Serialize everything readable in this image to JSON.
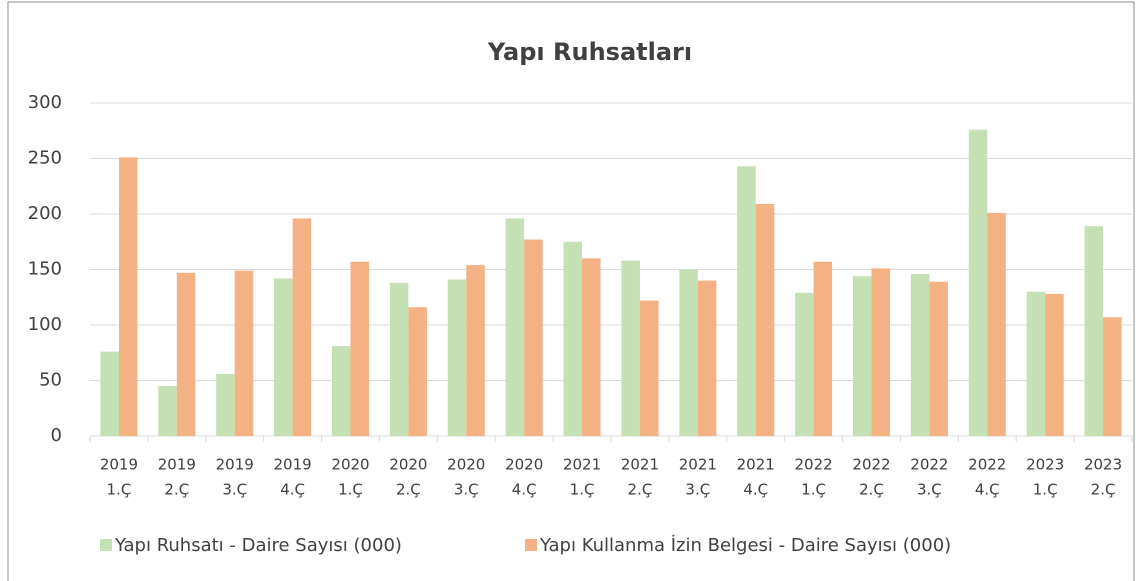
{
  "chart_data": {
    "type": "bar",
    "title": "Yapı Ruhsatları",
    "categories": [
      [
        "2019",
        "1.Ç"
      ],
      [
        "2019",
        "2.Ç"
      ],
      [
        "2019",
        "3.Ç"
      ],
      [
        "2019",
        "4.Ç"
      ],
      [
        "2020",
        "1.Ç"
      ],
      [
        "2020",
        "2.Ç"
      ],
      [
        "2020",
        "3.Ç"
      ],
      [
        "2020",
        "4.Ç"
      ],
      [
        "2021",
        "1.Ç"
      ],
      [
        "2021",
        "2.Ç"
      ],
      [
        "2021",
        "3.Ç"
      ],
      [
        "2021",
        "4.Ç"
      ],
      [
        "2022",
        "1.Ç"
      ],
      [
        "2022",
        "2.Ç"
      ],
      [
        "2022",
        "3.Ç"
      ],
      [
        "2022",
        "4.Ç"
      ],
      [
        "2023",
        "1.Ç"
      ],
      [
        "2023",
        "2.Ç"
      ]
    ],
    "series": [
      {
        "name": "Yapı Ruhsatı - Daire Sayısı (000)",
        "color": "#c5e0b4",
        "values": [
          76,
          45,
          56,
          142,
          81,
          138,
          141,
          196,
          175,
          158,
          150,
          243,
          129,
          144,
          146,
          276,
          130,
          189
        ]
      },
      {
        "name": "Yapı Kullanma İzin Belgesi - Daire Sayısı (000)",
        "color": "#f4b183",
        "values": [
          251,
          147,
          149,
          196,
          157,
          116,
          154,
          177,
          160,
          122,
          140,
          209,
          157,
          151,
          139,
          201,
          128,
          107
        ]
      }
    ],
    "ylim": [
      0,
      300
    ],
    "yticks": [
      0,
      50,
      100,
      150,
      200,
      250,
      300
    ],
    "grid": true,
    "legend": "bottom"
  }
}
